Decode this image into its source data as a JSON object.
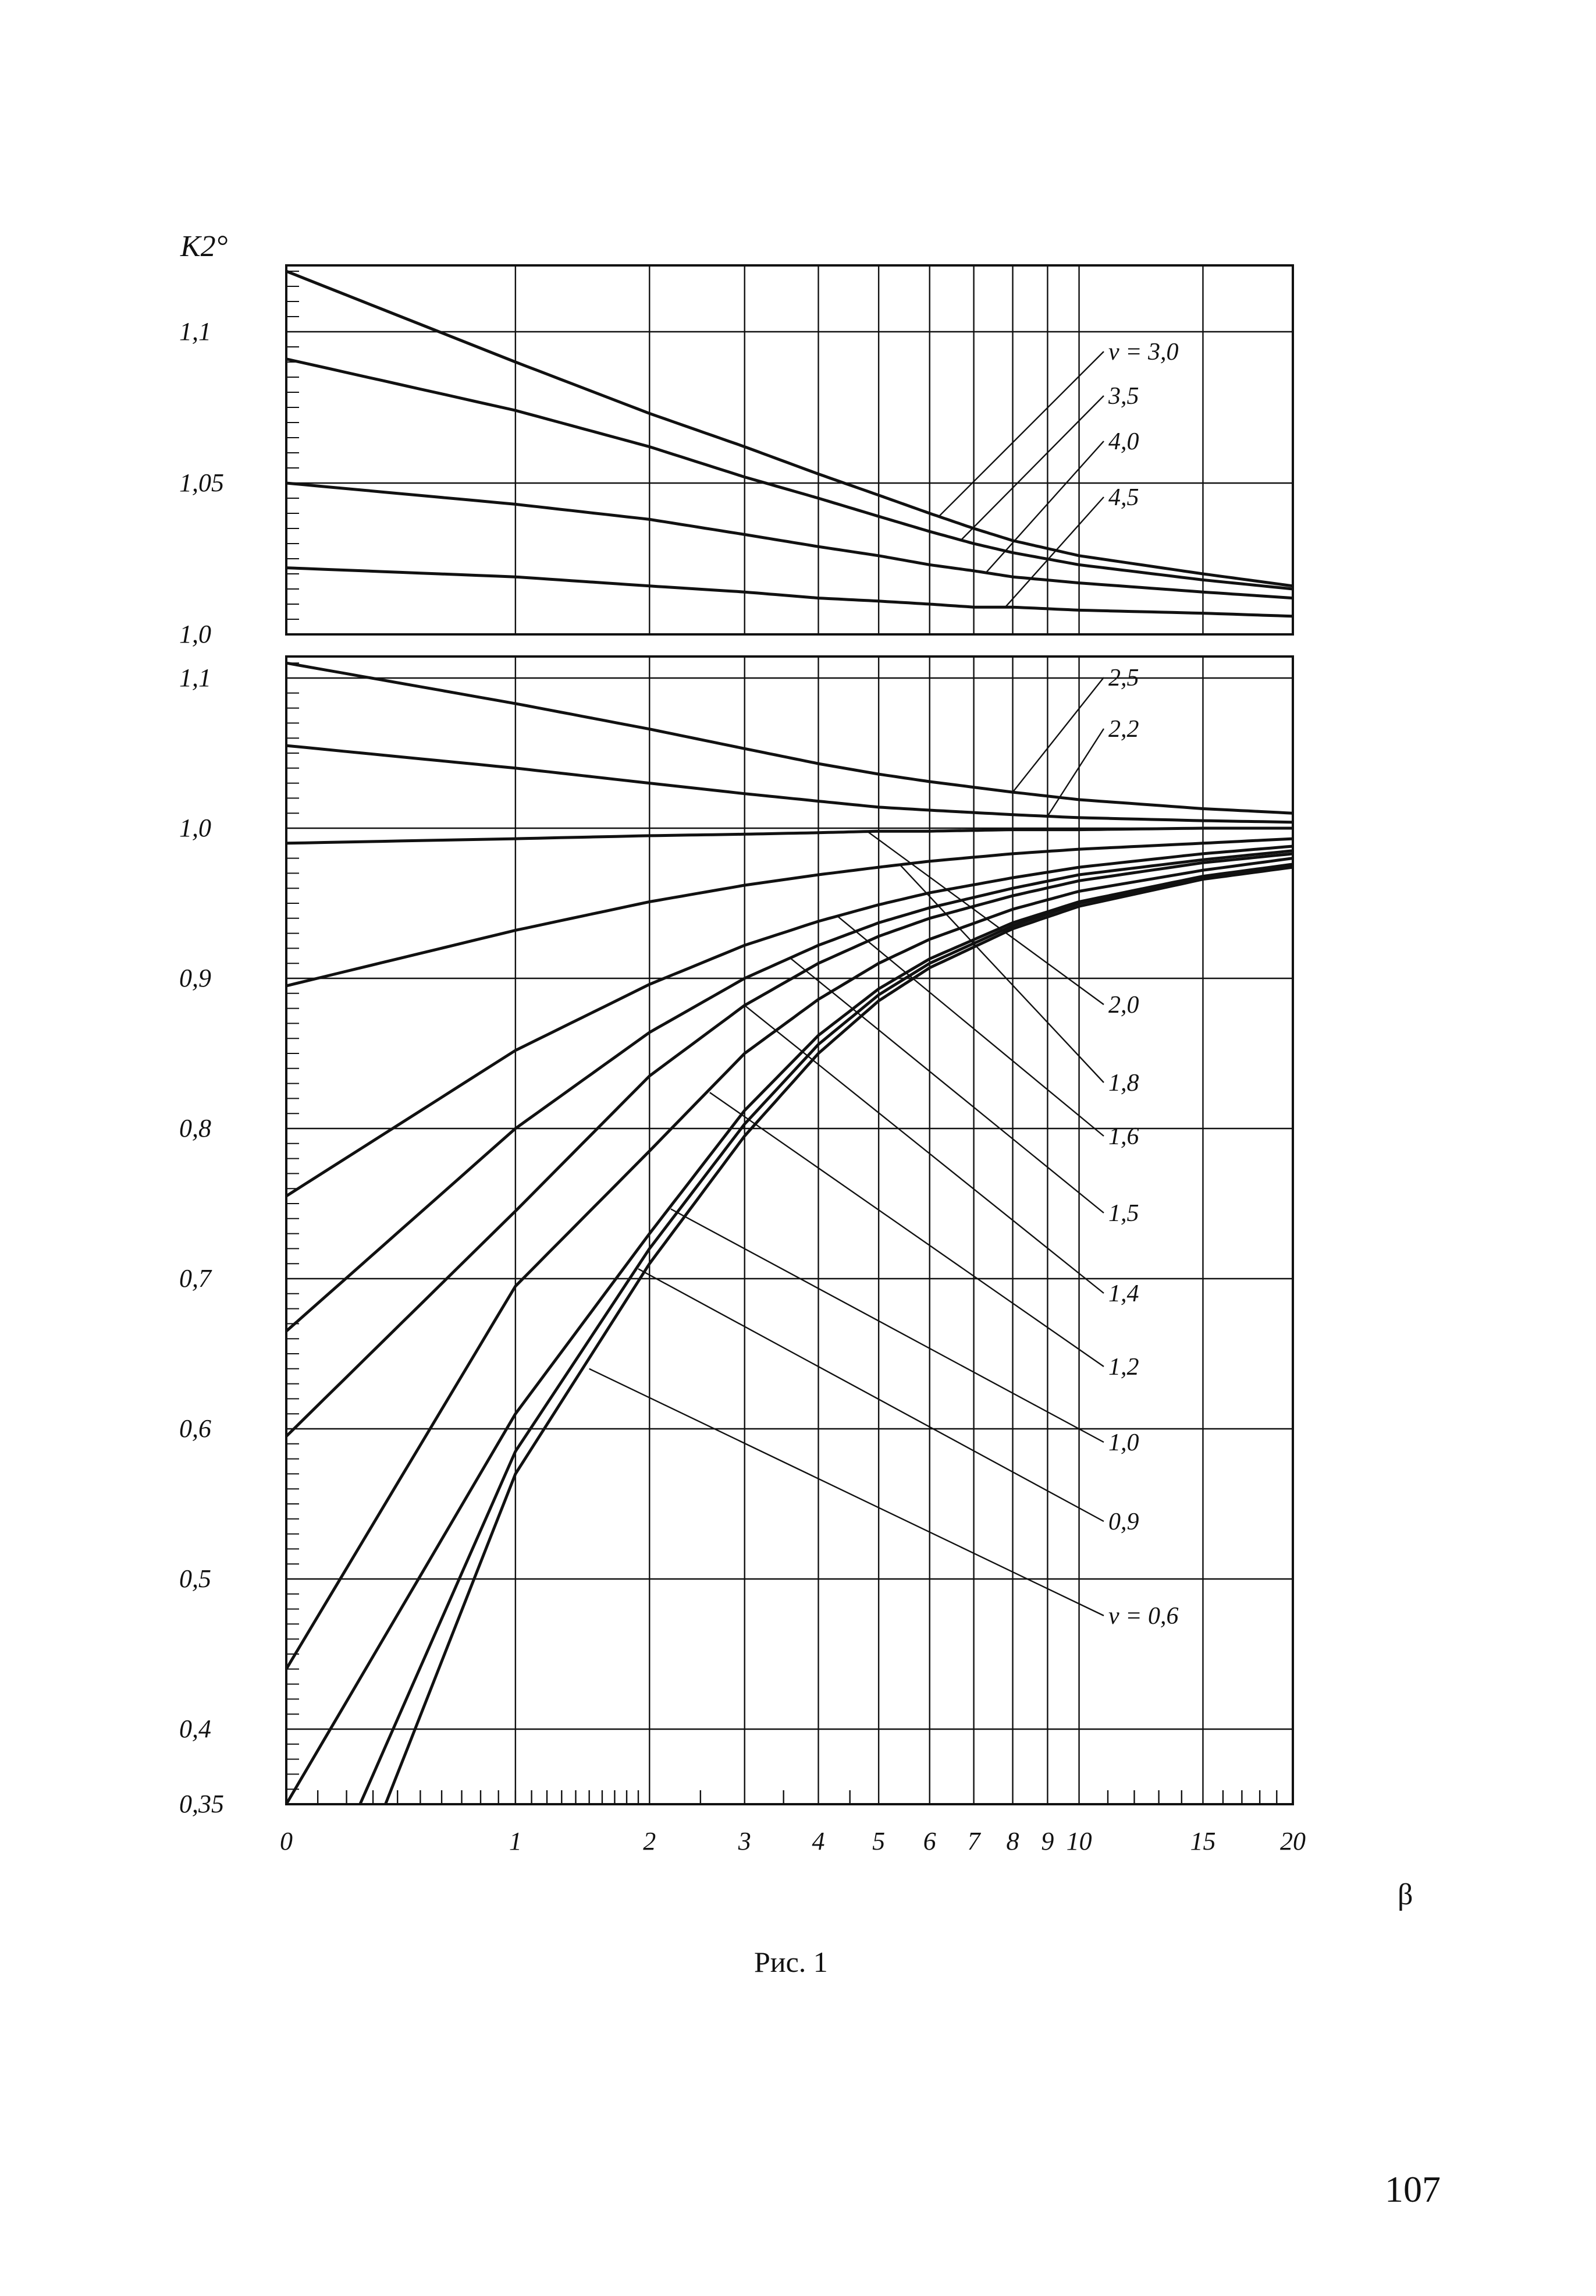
{
  "chart_data": {
    "type": "line",
    "ylabel": "K2°",
    "xlabel": "β",
    "x_ticks": [
      "0",
      "1",
      "2",
      "3",
      "4",
      "5",
      "6",
      "7",
      "8",
      "9",
      "10",
      "15",
      "20"
    ],
    "x_tick_values": [
      0,
      1,
      2,
      3,
      4,
      5,
      6,
      7,
      8,
      9,
      10,
      15,
      20
    ],
    "panels": [
      {
        "name": "upper",
        "ylim": [
          1.0,
          1.125
        ],
        "y_ticks": [
          "1,1",
          "1,05",
          "1,0"
        ],
        "y_tick_values": [
          1.1,
          1.05,
          1.0
        ],
        "grid": true,
        "series": [
          {
            "name": "v = 3,0",
            "x": [
              0,
              1,
              2,
              3,
              4,
              5,
              6,
              7,
              8,
              10,
              15,
              20
            ],
            "y": [
              1.12,
              1.09,
              1.073,
              1.062,
              1.053,
              1.046,
              1.04,
              1.035,
              1.031,
              1.026,
              1.02,
              1.016
            ]
          },
          {
            "name": "3,5",
            "x": [
              0,
              1,
              2,
              3,
              4,
              5,
              6,
              7,
              8,
              10,
              15,
              20
            ],
            "y": [
              1.091,
              1.074,
              1.062,
              1.052,
              1.045,
              1.039,
              1.034,
              1.03,
              1.027,
              1.023,
              1.018,
              1.015
            ]
          },
          {
            "name": "4,0",
            "x": [
              0,
              1,
              2,
              3,
              4,
              5,
              6,
              7,
              8,
              10,
              15,
              20
            ],
            "y": [
              1.05,
              1.043,
              1.038,
              1.033,
              1.029,
              1.026,
              1.023,
              1.021,
              1.019,
              1.017,
              1.014,
              1.012
            ]
          },
          {
            "name": "4,5",
            "x": [
              0,
              1,
              2,
              3,
              4,
              5,
              6,
              7,
              8,
              10,
              15,
              20
            ],
            "y": [
              1.022,
              1.019,
              1.016,
              1.014,
              1.012,
              1.011,
              1.01,
              1.009,
              1.009,
              1.008,
              1.007,
              1.006
            ]
          }
        ]
      },
      {
        "name": "lower",
        "ylim": [
          0.35,
          1.115
        ],
        "y_ticks": [
          "1,1",
          "1,0",
          "0,9",
          "0,8",
          "0,7",
          "0,6",
          "0,5",
          "0,4",
          "0,35"
        ],
        "y_tick_values": [
          1.1,
          1.0,
          0.9,
          0.8,
          0.7,
          0.6,
          0.5,
          0.4,
          0.35
        ],
        "grid": true,
        "series": [
          {
            "name": "2,5",
            "x": [
              0,
              1,
              2,
              3,
              4,
              5,
              6,
              8,
              10,
              15,
              20
            ],
            "y": [
              1.11,
              1.083,
              1.066,
              1.053,
              1.043,
              1.036,
              1.031,
              1.024,
              1.019,
              1.013,
              1.01
            ]
          },
          {
            "name": "2,2",
            "x": [
              0,
              1,
              2,
              3,
              4,
              5,
              6,
              8,
              10,
              15,
              20
            ],
            "y": [
              1.055,
              1.04,
              1.03,
              1.023,
              1.018,
              1.014,
              1.012,
              1.009,
              1.007,
              1.005,
              1.004
            ]
          },
          {
            "name": "2,0",
            "x": [
              0,
              1,
              2,
              3,
              4,
              5,
              6,
              8,
              10,
              15,
              20
            ],
            "y": [
              0.99,
              0.993,
              0.995,
              0.996,
              0.997,
              0.998,
              0.998,
              0.999,
              0.999,
              1.0,
              1.0
            ]
          },
          {
            "name": "1,8",
            "x": [
              0,
              1,
              2,
              3,
              4,
              5,
              6,
              8,
              10,
              15,
              20
            ],
            "y": [
              0.895,
              0.932,
              0.951,
              0.962,
              0.969,
              0.974,
              0.978,
              0.983,
              0.986,
              0.99,
              0.993
            ]
          },
          {
            "name": "1,6",
            "x": [
              0,
              1,
              2,
              3,
              4,
              5,
              6,
              8,
              10,
              15,
              20
            ],
            "y": [
              0.755,
              0.852,
              0.896,
              0.922,
              0.938,
              0.949,
              0.957,
              0.967,
              0.974,
              0.983,
              0.988
            ]
          },
          {
            "name": "1,5",
            "x": [
              0,
              1,
              2,
              3,
              4,
              5,
              6,
              8,
              10,
              15,
              20
            ],
            "y": [
              0.665,
              0.8,
              0.864,
              0.9,
              0.922,
              0.937,
              0.947,
              0.96,
              0.969,
              0.979,
              0.985
            ]
          },
          {
            "name": "1,4",
            "x": [
              0,
              1,
              2,
              3,
              4,
              5,
              6,
              8,
              10,
              15,
              20
            ],
            "y": [
              0.595,
              0.745,
              0.835,
              0.882,
              0.91,
              0.928,
              0.94,
              0.955,
              0.965,
              0.977,
              0.983
            ]
          },
          {
            "name": "1,2",
            "x": [
              0,
              1,
              2,
              3,
              4,
              5,
              6,
              8,
              10,
              15,
              20
            ],
            "y": [
              0.44,
              0.695,
              0.785,
              0.85,
              0.886,
              0.91,
              0.926,
              0.946,
              0.958,
              0.972,
              0.98
            ]
          },
          {
            "name": "1,0",
            "x": [
              0,
              1,
              2,
              3,
              4,
              5,
              6,
              8,
              10,
              15,
              20
            ],
            "y": [
              0.35,
              0.61,
              0.73,
              0.812,
              0.862,
              0.893,
              0.913,
              0.937,
              0.951,
              0.968,
              0.976
            ]
          },
          {
            "name": "0,9",
            "x": [
              0.25,
              1,
              2,
              3,
              4,
              5,
              6,
              8,
              10,
              15,
              20
            ],
            "y": [
              0.35,
              0.585,
              0.72,
              0.803,
              0.856,
              0.889,
              0.91,
              0.935,
              0.95,
              0.967,
              0.975
            ]
          },
          {
            "name": "v = 0,6",
            "x": [
              0.35,
              1,
              2,
              3,
              4,
              5,
              6,
              8,
              10,
              15,
              20
            ],
            "y": [
              0.35,
              0.57,
              0.71,
              0.795,
              0.85,
              0.885,
              0.907,
              0.933,
              0.948,
              0.966,
              0.974
            ]
          }
        ]
      }
    ]
  },
  "caption": "Рис. 1",
  "page_number": "107"
}
